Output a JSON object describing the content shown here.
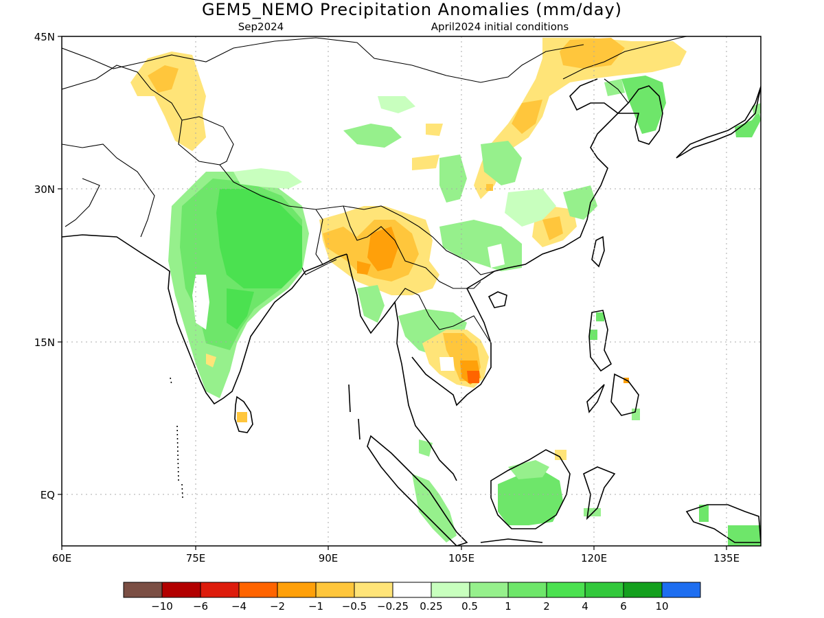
{
  "title": "GEM5_NEMO Precipitation Anomalies (mm/day)",
  "subtitle_left": "Sep2024",
  "subtitle_right": "April2024 initial conditions",
  "lat_labels": [
    "45N",
    "30N",
    "15N",
    "EQ"
  ],
  "lon_labels": [
    "60E",
    "75E",
    "90E",
    "105E",
    "120E",
    "135E"
  ],
  "colorbar": {
    "colors": [
      "#7b4f44",
      "#b20000",
      "#dd1c0c",
      "#ff6400",
      "#ffa00a",
      "#ffc63c",
      "#ffe478",
      "#ffffff",
      "#c8ffbe",
      "#96f08c",
      "#6ee66a",
      "#4be150",
      "#32c83c",
      "#14a01e",
      "#1e6ef0"
    ],
    "labels": [
      "−10",
      "−6",
      "−4",
      "−2",
      "−1",
      "−0.5",
      "−0.25",
      "0.25",
      "0.5",
      "1",
      "2",
      "4",
      "6",
      "10"
    ]
  },
  "chart_data": {
    "type": "heatmap",
    "title": "GEM5_NEMO Precipitation Anomalies (mm/day)",
    "lon_range": [
      60,
      140
    ],
    "lat_range": [
      -5,
      45
    ],
    "grid": true,
    "levels": [
      -10,
      -6,
      -4,
      -2,
      -1,
      -0.5,
      -0.25,
      0.25,
      0.5,
      1,
      2,
      4,
      6,
      10
    ],
    "regions": [
      {
        "name": "India (central/north)",
        "anomaly_range": [
          1,
          4
        ]
      },
      {
        "name": "India (south/west coast)",
        "anomaly_range": [
          0.5,
          1
        ]
      },
      {
        "name": "Northeast India / Myanmar",
        "anomaly_range": [
          -2,
          -0.5
        ]
      },
      {
        "name": "Southern Cambodia / Vietnam",
        "anomaly_range": [
          -4,
          -1
        ]
      },
      {
        "name": "Borneo",
        "anomaly_range": [
          1,
          2
        ]
      },
      {
        "name": "Northern Pakistan / Kashmir",
        "anomaly_range": [
          -1,
          -0.25
        ]
      },
      {
        "name": "Northeast China / Mongolia",
        "anomaly_range": [
          -1,
          -0.25
        ]
      },
      {
        "name": "Korea",
        "anomaly_range": [
          0.5,
          2
        ]
      }
    ]
  }
}
